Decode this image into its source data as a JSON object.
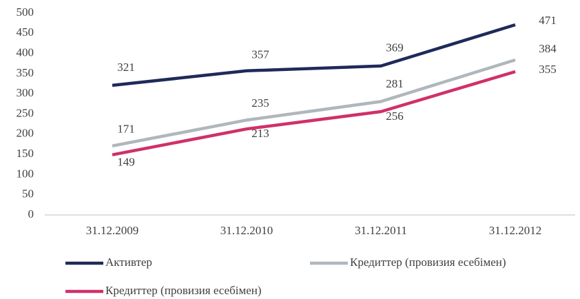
{
  "chart_data": {
    "type": "line",
    "categories": [
      "31.12.2009",
      "31.12.2010",
      "31.12.2011",
      "31.12.2012"
    ],
    "series": [
      {
        "name": "Активтер",
        "color": "#1f2a5a",
        "values": [
          321,
          357,
          369,
          471
        ]
      },
      {
        "name": "Кредиттер (провизия есебімен)",
        "color": "#b0b7bc",
        "values": [
          171,
          235,
          281,
          384
        ]
      },
      {
        "name": "Кредиттер (провизия есебімен)",
        "color": "#d0306a",
        "values": [
          149,
          213,
          256,
          355
        ]
      }
    ],
    "ylim": [
      0,
      500
    ],
    "yticks": [
      0,
      50,
      100,
      150,
      200,
      250,
      300,
      350,
      400,
      450,
      500
    ],
    "grid": false
  }
}
